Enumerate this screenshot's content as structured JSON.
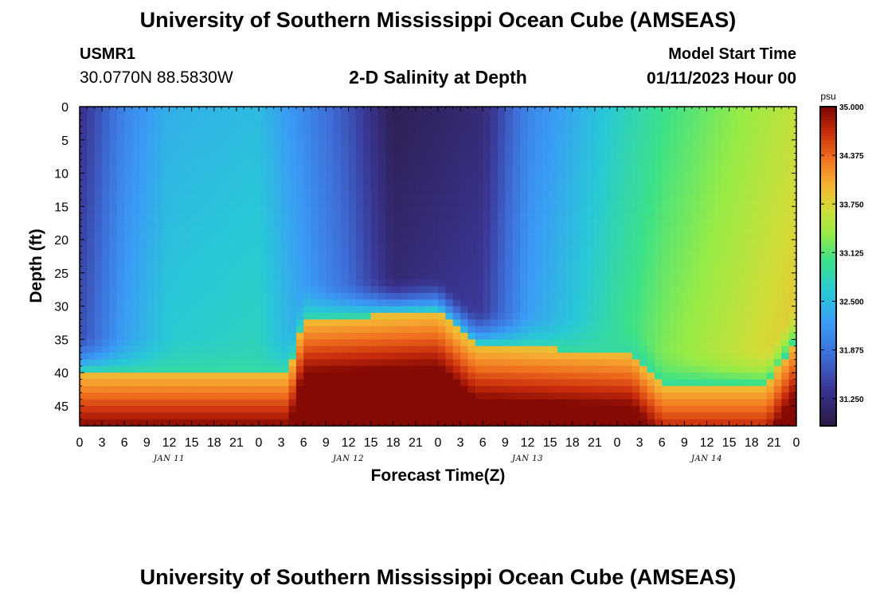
{
  "header": {
    "title": "University of Southern Mississippi Ocean Cube (AMSEAS)",
    "station": "USMR1",
    "coords": "30.0770N  88.5830W",
    "subtitle": "2-D Salinity at Depth",
    "model_label": "Model Start Time",
    "model_time": "01/11/2023 Hour 00"
  },
  "footer": {
    "title": "University of Southern Mississippi Ocean Cube (AMSEAS)"
  },
  "chart_data": {
    "type": "heatmap",
    "title": "2-D Salinity at Depth",
    "xlabel": "Forecast Time(Z)",
    "ylabel": "Depth (ft)",
    "x_hours_range": [
      0,
      96
    ],
    "x_tick_labels": [
      "0",
      "3",
      "6",
      "9",
      "12",
      "15",
      "18",
      "21",
      "0",
      "3",
      "6",
      "9",
      "12",
      "15",
      "18",
      "21",
      "0",
      "3",
      "6",
      "9",
      "12",
      "15",
      "18",
      "21",
      "0",
      "3",
      "6",
      "9",
      "12",
      "15",
      "18",
      "21",
      "0"
    ],
    "day_labels": [
      "JAN 11",
      "JAN 12",
      "JAN 13",
      "JAN 14"
    ],
    "ylim": [
      0,
      48
    ],
    "y_ticks": [
      0,
      5,
      10,
      15,
      20,
      25,
      30,
      35,
      40,
      45
    ],
    "colorbar": {
      "unit": "psu",
      "range": [
        30.9,
        35.0
      ],
      "ticks": [
        "35.000",
        "34.375",
        "33.750",
        "33.125",
        "32.500",
        "31.875",
        "31.250"
      ]
    },
    "surface_salinity": [
      {
        "hour": 0,
        "psu": 31.3
      },
      {
        "hour": 6,
        "psu": 32.0
      },
      {
        "hour": 12,
        "psu": 32.4
      },
      {
        "hour": 24,
        "psu": 32.5
      },
      {
        "hour": 36,
        "psu": 31.6
      },
      {
        "hour": 42,
        "psu": 31.0
      },
      {
        "hour": 54,
        "psu": 31.2
      },
      {
        "hour": 60,
        "psu": 32.0
      },
      {
        "hour": 72,
        "psu": 32.7
      },
      {
        "hour": 78,
        "psu": 33.0
      },
      {
        "hour": 96,
        "psu": 33.6
      }
    ],
    "bottom_layer_top_depth": [
      {
        "hour": 0,
        "ft": 40
      },
      {
        "hour": 28,
        "ft": 40
      },
      {
        "hour": 30,
        "ft": 32
      },
      {
        "hour": 48,
        "ft": 31
      },
      {
        "hour": 53,
        "ft": 36
      },
      {
        "hour": 74,
        "ft": 37
      },
      {
        "hour": 78,
        "ft": 42
      },
      {
        "hour": 92,
        "ft": 42
      },
      {
        "hour": 96,
        "ft": 35
      }
    ],
    "bottom_salinity_range": [
      33.9,
      34.95
    ]
  }
}
